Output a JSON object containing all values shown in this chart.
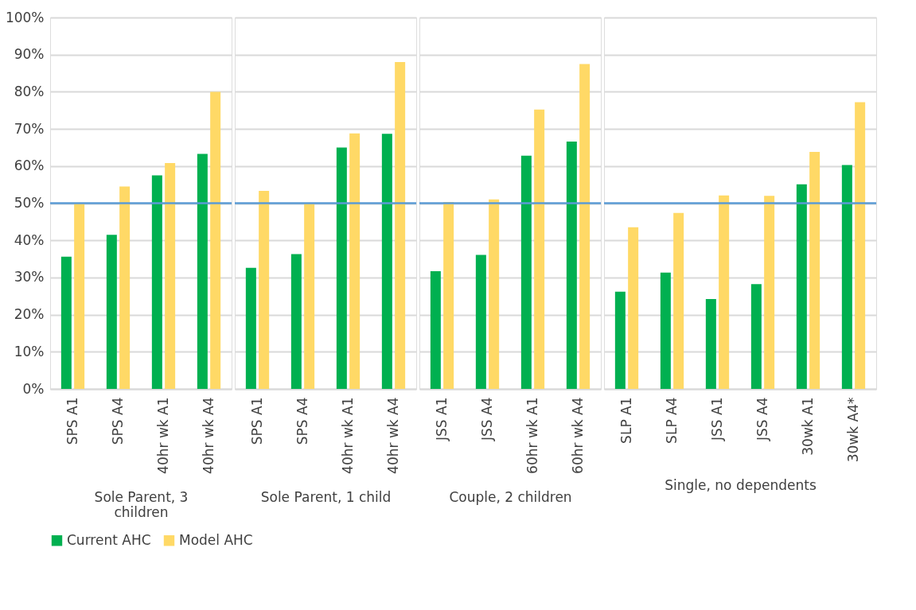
{
  "chart_data": [
    {
      "type": "bar",
      "xlabel": "Sole Parent, 3 children",
      "categories": [
        "SPS A1",
        "SPS A4",
        "40hr wk A1",
        "40hr wk A4"
      ],
      "series": [
        {
          "name": "Current AHC",
          "color": "#00b050",
          "values": [
            35.6,
            41.5,
            57.5,
            63.3
          ]
        },
        {
          "name": "Model AHC",
          "color": "#ffd966",
          "values": [
            50.0,
            54.5,
            60.8,
            80.0
          ]
        }
      ],
      "ylim": [
        0,
        100
      ],
      "yticks": [
        {
          "value": 0,
          "label": "0%"
        },
        {
          "value": 10,
          "label": "10%"
        },
        {
          "value": 20,
          "label": "20%"
        },
        {
          "value": 30,
          "label": "30%"
        },
        {
          "value": 40,
          "label": "40%"
        },
        {
          "value": 50,
          "label": "50%"
        },
        {
          "value": 60,
          "label": "60%"
        },
        {
          "value": 70,
          "label": "70%"
        },
        {
          "value": 80,
          "label": "80%"
        },
        {
          "value": 90,
          "label": "90%"
        },
        {
          "value": 100,
          "label": "100%"
        }
      ],
      "ref_lines": [
        {
          "axis": "y",
          "value": 50,
          "color": "#5b9bd5"
        }
      ],
      "grid": "y",
      "legend": "bottom"
    },
    {
      "type": "bar",
      "xlabel": "Sole Parent, 1 child",
      "categories": [
        "SPS A1",
        "SPS A4",
        "40hr wk A1",
        "40hr wk A4"
      ],
      "series": [
        {
          "name": "Current AHC",
          "color": "#00b050",
          "values": [
            32.6,
            36.3,
            65.0,
            68.7
          ]
        },
        {
          "name": "Model AHC",
          "color": "#ffd966",
          "values": [
            53.3,
            50.0,
            68.8,
            88.0
          ]
        }
      ],
      "ylim": [
        0,
        100
      ],
      "ref_lines": [
        {
          "axis": "y",
          "value": 50,
          "color": "#5b9bd5"
        }
      ],
      "grid": "y",
      "tick_labels": "x"
    },
    {
      "type": "bar",
      "xlabel": "Couple, 2 children",
      "categories": [
        "JSS A1",
        "JSS A4",
        "60hr wk A1",
        "60hr wk A4"
      ],
      "series": [
        {
          "name": "Current AHC",
          "color": "#00b050",
          "values": [
            31.7,
            36.1,
            62.8,
            66.6
          ]
        },
        {
          "name": "Model AHC",
          "color": "#ffd966",
          "values": [
            50.3,
            51.0,
            75.2,
            87.5
          ]
        }
      ],
      "ylim": [
        0,
        100
      ],
      "ref_lines": [
        {
          "axis": "y",
          "value": 50,
          "color": "#5b9bd5"
        }
      ],
      "grid": "y",
      "tick_labels": "x"
    },
    {
      "type": "bar",
      "xlabel": "Single, no dependents",
      "categories": [
        "SLP A1",
        "SLP A4",
        "JSS A1",
        "JSS A4",
        "30wk A1",
        "30wk A4*"
      ],
      "series": [
        {
          "name": "Current AHC",
          "color": "#00b050",
          "values": [
            26.2,
            31.3,
            24.2,
            28.2,
            55.1,
            60.3
          ]
        },
        {
          "name": "Model AHC",
          "color": "#ffd966",
          "values": [
            43.5,
            47.4,
            52.1,
            52.0,
            63.8,
            77.2
          ]
        }
      ],
      "ylim": [
        0,
        100
      ],
      "ref_lines": [
        {
          "axis": "y",
          "value": 50,
          "color": "#5b9bd5"
        }
      ],
      "grid": "y",
      "tick_labels": "x"
    }
  ]
}
